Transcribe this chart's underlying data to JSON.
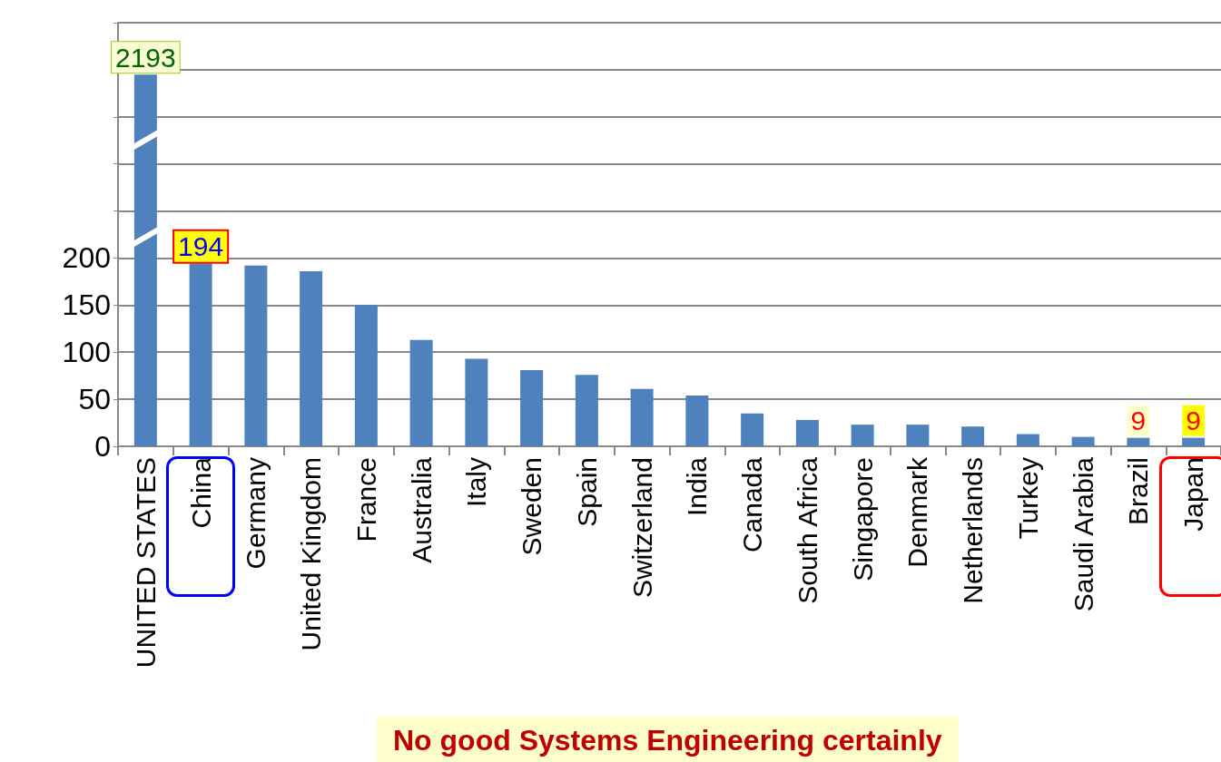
{
  "chart_data": [
    {
      "type": "bar",
      "categories": [
        null
      ],
      "values": [
        2193
      ],
      "value_labels": [
        "2193"
      ],
      "color": "#4f81bd"
    },
    {
      "type": "bar",
      "categories": [
        "UNITED STATES",
        "China",
        "Germany",
        "United Kingdom",
        "France",
        "Australia",
        "Italy",
        "Sweden",
        "Spain",
        "Switzerland",
        "India",
        "Canada",
        "South Africa",
        "Singapore",
        "Denmark",
        "Netherlands",
        "Turkey",
        "Saudi Arabia",
        "Brazil",
        "Japan"
      ],
      "values": [
        null,
        194,
        192,
        186,
        150,
        113,
        93,
        81,
        76,
        61,
        54,
        35,
        28,
        23,
        23,
        21,
        13,
        10,
        9,
        9
      ],
      "value_labels": [
        null,
        "194",
        null,
        null,
        null,
        null,
        null,
        null,
        null,
        null,
        null,
        null,
        null,
        null,
        null,
        null,
        null,
        null,
        "9",
        "9"
      ],
      "color": "#4f81bd",
      "ylim": [
        0,
        450
      ],
      "yticks": [
        0,
        50,
        100,
        150,
        200,
        {
          "value": 250,
          "label": null
        },
        {
          "value": 300,
          "label": null
        },
        {
          "value": 350,
          "label": null
        },
        {
          "value": 400,
          "label": null
        },
        {
          "value": 450,
          "label": null
        }
      ],
      "grid": "y",
      "annotations": [
        "No good Systems Engineering certainly"
      ]
    }
  ]
}
